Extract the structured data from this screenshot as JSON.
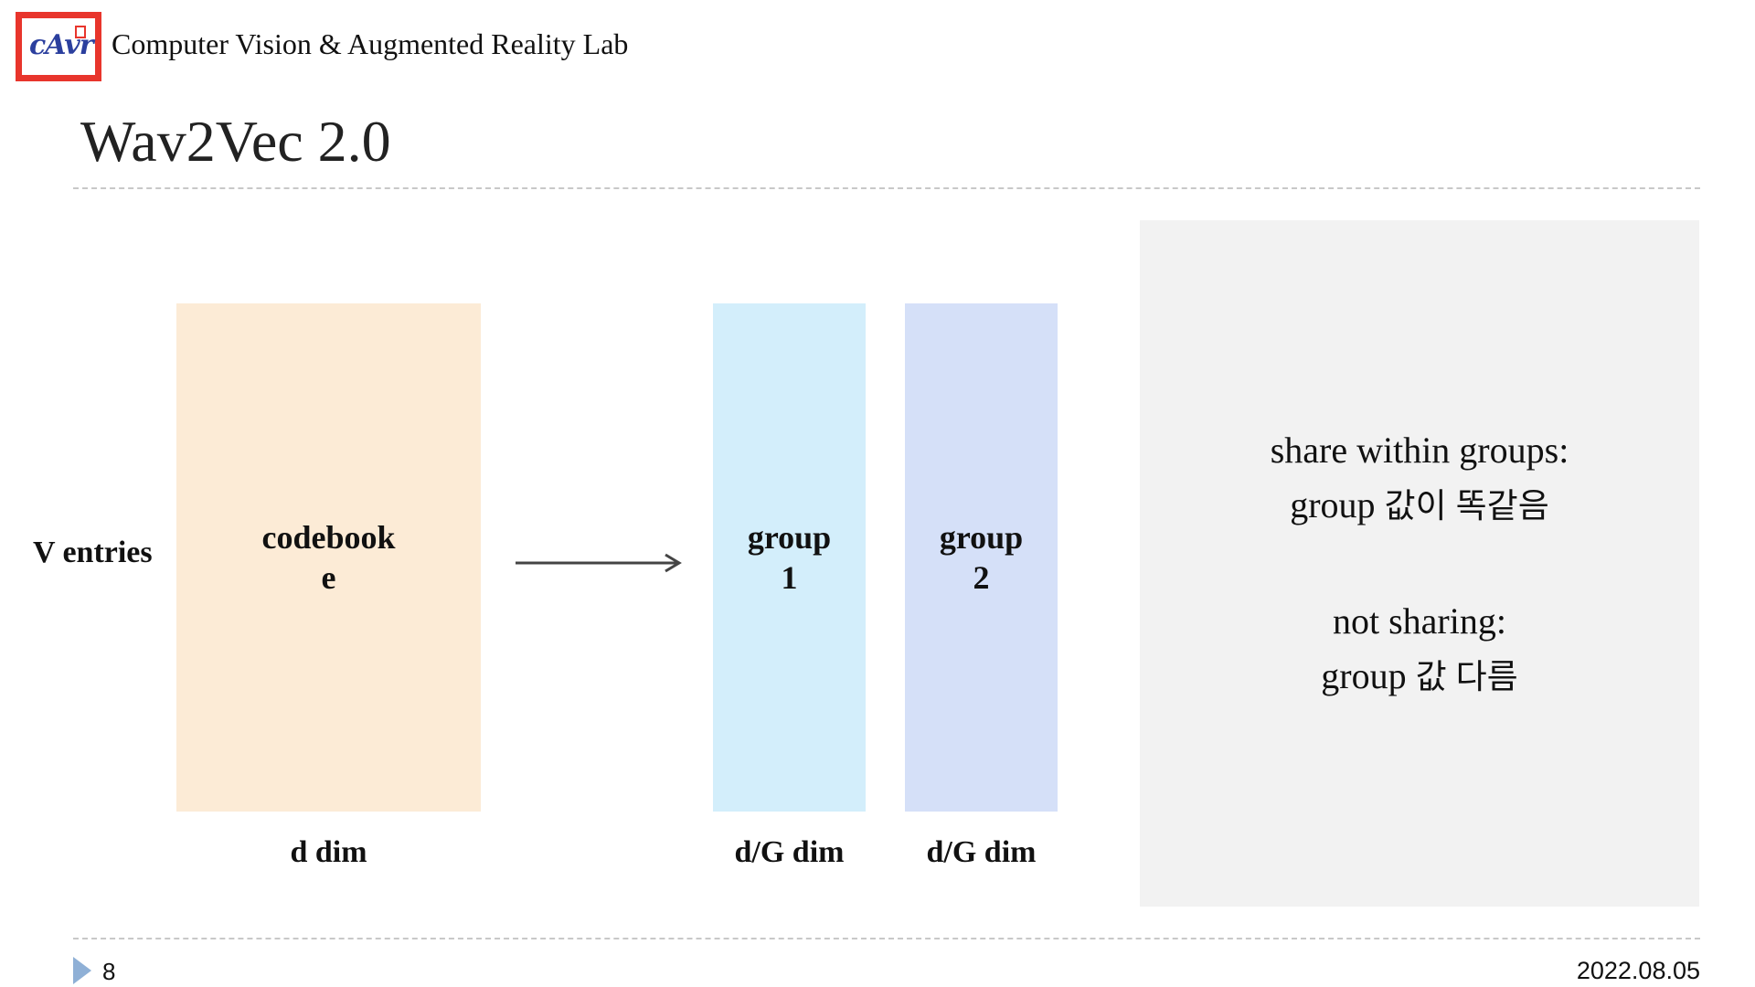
{
  "header": {
    "logo_icon": "cavr-lab-logo",
    "lab_name": "Computer Vision & Augmented Reality Lab",
    "title": "Wav2Vec 2.0"
  },
  "diagram": {
    "row_label": "V entries",
    "codebook": {
      "line1": "codebook",
      "line2": "e",
      "dim_label": "d dim",
      "color": "#fcebd6"
    },
    "arrow_icon": "arrow-right-icon",
    "groups": [
      {
        "line1": "group",
        "line2": "1",
        "dim_label": "d/G dim",
        "color": "#d3eefb"
      },
      {
        "line1": "group",
        "line2": "2",
        "dim_label": "d/G dim",
        "color": "#d5e0f8"
      }
    ]
  },
  "notes": {
    "share_heading": "share within groups:",
    "share_detail": "group 값이 똑같음",
    "not_share_heading": "not sharing:",
    "not_share_detail": "group 값 다름"
  },
  "footer": {
    "page_number": "8",
    "date": "2022.08.05"
  }
}
